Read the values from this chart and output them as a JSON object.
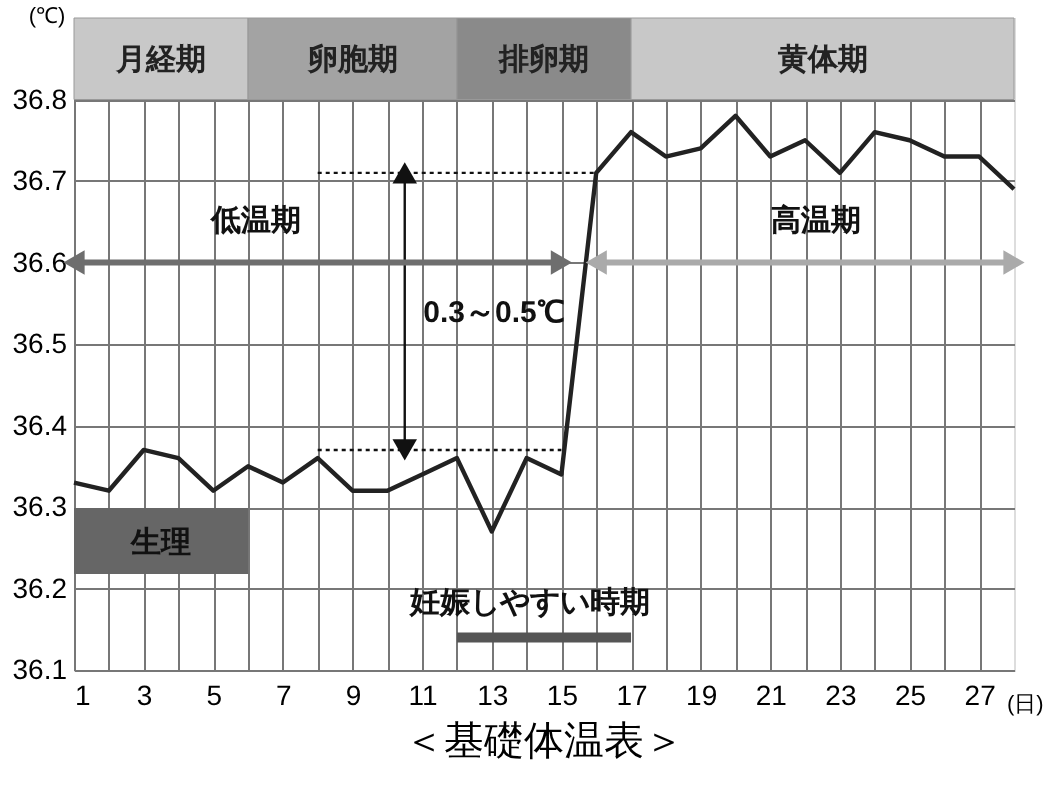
{
  "chart_data": {
    "type": "line",
    "title": "＜基礎体温表＞",
    "xlabel": "(日)",
    "ylabel": "(℃)",
    "x": [
      1,
      2,
      3,
      4,
      5,
      6,
      7,
      8,
      9,
      10,
      11,
      12,
      13,
      14,
      15,
      16,
      17,
      18,
      19,
      20,
      21,
      22,
      23,
      24,
      25,
      26,
      27,
      28
    ],
    "series": [
      {
        "color": "#222222",
        "values": [
          36.33,
          36.32,
          36.37,
          36.36,
          36.32,
          36.35,
          36.33,
          36.36,
          36.32,
          36.32,
          36.34,
          36.36,
          36.27,
          36.36,
          36.34,
          36.71,
          36.76,
          36.73,
          36.74,
          36.78,
          36.73,
          36.75,
          36.71,
          36.76,
          36.75,
          36.73,
          36.73,
          36.69
        ]
      },
      {
        "type": "line",
        "x": [
          8,
          16
        ],
        "values": [
          36.71,
          36.71
        ],
        "color": "#111111",
        "line_style": "dotted"
      },
      {
        "type": "line",
        "x": [
          8,
          15
        ],
        "values": [
          36.37,
          36.37
        ],
        "color": "#111111",
        "line_style": "dotted"
      },
      {
        "type": "line",
        "x": [
          10.5,
          10.5
        ],
        "values": [
          36.37,
          36.71
        ],
        "color": "#111111",
        "marker": "triangle"
      },
      {
        "type": "line",
        "x": [
          1,
          15
        ],
        "values": [
          36.6,
          36.6
        ],
        "color": "#6e6e6e",
        "marker": "triangle"
      },
      {
        "type": "line",
        "x": [
          16,
          28
        ],
        "values": [
          36.6,
          36.6
        ],
        "color": "#aaaaaa",
        "marker": "triangle"
      },
      {
        "type": "line",
        "x": [
          12,
          17
        ],
        "values": [
          36.14,
          36.14
        ],
        "color": "#555555"
      }
    ],
    "bands": [
      {
        "axis": "x",
        "from": 1,
        "to": 6,
        "label": "月経期",
        "color": "#c8c8c8"
      },
      {
        "axis": "x",
        "from": 6,
        "to": 12,
        "label": "卵胞期",
        "color": "#a3a3a3"
      },
      {
        "axis": "x",
        "from": 12,
        "to": 17,
        "label": "排卵期",
        "color": "#8a8a8a"
      },
      {
        "axis": "x",
        "from": 17,
        "to": 28,
        "label": "黄体期",
        "color": "#c8c8c8"
      },
      {
        "axis": "x",
        "from": 1,
        "to": 6,
        "label": "生理",
        "color": "#666666"
      }
    ],
    "annotations": [
      "低温期",
      "高温期",
      "0.3～0.5℃",
      "妊娠しやすい時期"
    ],
    "xlim": [
      1,
      28
    ],
    "ylim": [
      36.1,
      36.9
    ],
    "xticks": [
      1,
      {
        "value": 2,
        "label": null
      },
      3,
      {
        "value": 4,
        "label": null
      },
      5,
      {
        "value": 6,
        "label": null
      },
      7,
      {
        "value": 8,
        "label": null
      },
      9,
      {
        "value": 10,
        "label": null
      },
      11,
      {
        "value": 12,
        "label": null
      },
      13,
      {
        "value": 14,
        "label": null
      },
      15,
      {
        "value": 16,
        "label": null
      },
      17,
      {
        "value": 18,
        "label": null
      },
      19,
      {
        "value": 20,
        "label": null
      },
      21,
      {
        "value": 22,
        "label": null
      },
      23,
      {
        "value": 24,
        "label": null
      },
      25,
      {
        "value": 26,
        "label": null
      },
      27
    ],
    "yticks": [
      36.1,
      36.2,
      36.3,
      36.4,
      36.5,
      36.6,
      36.7,
      36.8
    ],
    "grid": true
  }
}
